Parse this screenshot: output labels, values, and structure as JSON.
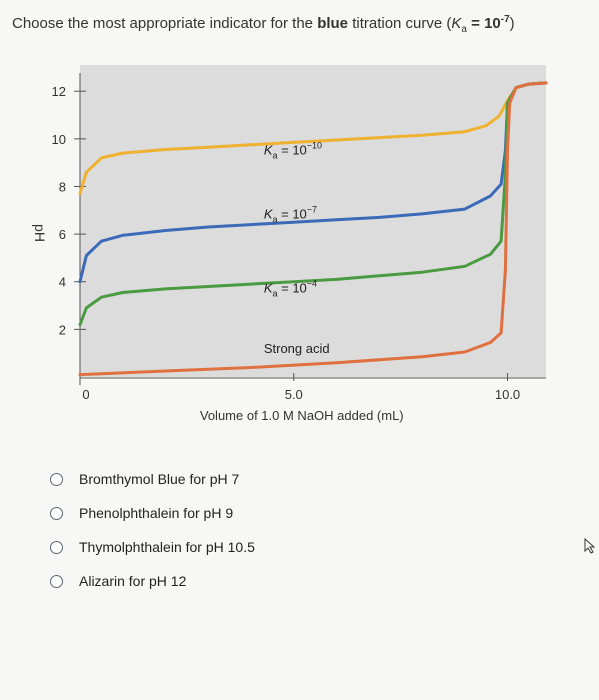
{
  "question": {
    "prefix": "Choose the most appropriate indicator for the",
    "emphasis": "blue",
    "suffix": "titration curve (",
    "ka_symbol": "K",
    "ka_sub": "a",
    "ka_eq": " = 10",
    "ka_exp": "-7",
    "close": ")"
  },
  "options": [
    {
      "label": "Bromthymol Blue for pH 7"
    },
    {
      "label": "Phenolphthalein for pH 9"
    },
    {
      "label": "Thymolphthalein for pH 10.5"
    },
    {
      "label": "Alizarin for pH 12"
    }
  ],
  "chart_data": {
    "type": "line",
    "xlabel": "Volume of 1.0 M NaOH added (mL)",
    "ylabel": "pH",
    "xlim": [
      0,
      10.9
    ],
    "ylim": [
      0,
      13.1
    ],
    "x_ticks": [
      0,
      5.0,
      10.0
    ],
    "x_tick_labels": [
      "0",
      "5.0",
      "10.0"
    ],
    "y_ticks": [
      2,
      4,
      6,
      8,
      10,
      12
    ],
    "y_tick_labels": [
      "2",
      "4",
      "6",
      "8",
      "10",
      "12"
    ],
    "grid": false,
    "background": "#dcdcdc",
    "series": [
      {
        "name": "Ka = 10^-10",
        "label_text": "K",
        "label_sub": "a",
        "label_eq": " = 10",
        "label_exp": "−10",
        "color": "#f0b030",
        "label_at": [
          4.3,
          9.35
        ],
        "points": [
          [
            0,
            7.7
          ],
          [
            0.15,
            8.6
          ],
          [
            0.5,
            9.2
          ],
          [
            1,
            9.4
          ],
          [
            2,
            9.55
          ],
          [
            3,
            9.65
          ],
          [
            4,
            9.75
          ],
          [
            5,
            9.85
          ],
          [
            6,
            9.95
          ],
          [
            7,
            10.05
          ],
          [
            8,
            10.15
          ],
          [
            9,
            10.3
          ],
          [
            9.5,
            10.55
          ],
          [
            9.8,
            10.95
          ],
          [
            10,
            11.6
          ],
          [
            10.2,
            12.15
          ],
          [
            10.5,
            12.3
          ],
          [
            10.9,
            12.35
          ]
        ]
      },
      {
        "name": "Ka = 10^-7",
        "label_text": "K",
        "label_sub": "a",
        "label_eq": " = 10",
        "label_exp": "−7",
        "color": "#3a6ab8",
        "label_at": [
          4.3,
          6.65
        ],
        "points": [
          [
            0,
            4.0
          ],
          [
            0.15,
            5.1
          ],
          [
            0.5,
            5.7
          ],
          [
            1,
            5.95
          ],
          [
            2,
            6.15
          ],
          [
            3,
            6.3
          ],
          [
            4,
            6.4
          ],
          [
            5,
            6.5
          ],
          [
            6,
            6.6
          ],
          [
            7,
            6.7
          ],
          [
            8,
            6.85
          ],
          [
            9,
            7.05
          ],
          [
            9.6,
            7.6
          ],
          [
            9.85,
            8.1
          ],
          [
            9.95,
            9.5
          ],
          [
            10,
            11.5
          ],
          [
            10.2,
            12.15
          ],
          [
            10.5,
            12.3
          ],
          [
            10.9,
            12.35
          ]
        ]
      },
      {
        "name": "Ka = 10^-4",
        "label_text": "K",
        "label_sub": "a",
        "label_eq": " = 10",
        "label_exp": "−4",
        "color": "#4a9a40",
        "label_at": [
          4.3,
          3.55
        ],
        "points": [
          [
            0,
            2.2
          ],
          [
            0.15,
            2.9
          ],
          [
            0.5,
            3.35
          ],
          [
            1,
            3.55
          ],
          [
            2,
            3.7
          ],
          [
            3,
            3.8
          ],
          [
            4,
            3.9
          ],
          [
            5,
            4.0
          ],
          [
            6,
            4.1
          ],
          [
            7,
            4.25
          ],
          [
            8,
            4.4
          ],
          [
            9,
            4.65
          ],
          [
            9.6,
            5.15
          ],
          [
            9.85,
            5.7
          ],
          [
            9.95,
            8.5
          ],
          [
            10,
            11.5
          ],
          [
            10.2,
            12.15
          ],
          [
            10.5,
            12.3
          ],
          [
            10.9,
            12.35
          ]
        ]
      },
      {
        "name": "Strong acid",
        "label_text": "Strong acid",
        "color": "#e07040",
        "label_at": [
          4.3,
          1.0
        ],
        "points": [
          [
            0,
            0.1
          ],
          [
            2,
            0.25
          ],
          [
            4,
            0.4
          ],
          [
            6,
            0.6
          ],
          [
            8,
            0.85
          ],
          [
            9,
            1.05
          ],
          [
            9.6,
            1.45
          ],
          [
            9.85,
            1.85
          ],
          [
            9.95,
            4.5
          ],
          [
            10,
            9.5
          ],
          [
            10.05,
            11.5
          ],
          [
            10.2,
            12.15
          ],
          [
            10.5,
            12.3
          ],
          [
            10.9,
            12.35
          ]
        ]
      }
    ]
  },
  "cursor": {
    "icon": "arrow-cursor-icon"
  }
}
